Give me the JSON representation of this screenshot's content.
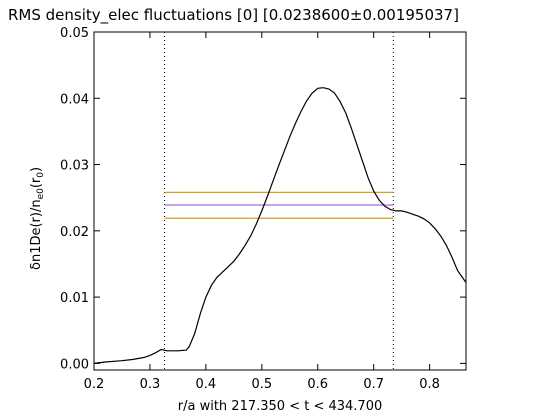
{
  "chart_data": {
    "type": "line",
    "title": "RMS density_elec fluctuations  [0] [0.0238600±0.00195037]",
    "xlabel": "r/a with 217.350 < t < 434.700",
    "ylabel_main": "δn1De(r)/n",
    "ylabel_sub1": "e0",
    "ylabel_mid": "(r",
    "ylabel_sub2": "0",
    "ylabel_end": ")",
    "xlim": [
      0.2,
      0.865
    ],
    "ylim": [
      -0.001,
      0.05
    ],
    "xticks": [
      0.2,
      0.3,
      0.4,
      0.5,
      0.6,
      0.7,
      0.8
    ],
    "xtick_labels": [
      "0.2",
      "0.3",
      "0.4",
      "0.5",
      "0.6",
      "0.7",
      "0.8"
    ],
    "yticks": [
      0.0,
      0.01,
      0.02,
      0.03,
      0.04,
      0.05
    ],
    "ytick_labels": [
      "0.00",
      "0.01",
      "0.02",
      "0.03",
      "0.04",
      "0.05"
    ],
    "grid": false,
    "series": [
      {
        "color": "#000000",
        "x": [
          0.2,
          0.22,
          0.25,
          0.27,
          0.29,
          0.3,
          0.31,
          0.32,
          0.325,
          0.33,
          0.35,
          0.365,
          0.37,
          0.38,
          0.39,
          0.4,
          0.41,
          0.42,
          0.43,
          0.44,
          0.45,
          0.46,
          0.47,
          0.48,
          0.49,
          0.5,
          0.51,
          0.52,
          0.53,
          0.54,
          0.55,
          0.56,
          0.57,
          0.58,
          0.59,
          0.6,
          0.61,
          0.62,
          0.63,
          0.64,
          0.65,
          0.66,
          0.67,
          0.68,
          0.69,
          0.7,
          0.71,
          0.72,
          0.73,
          0.74,
          0.75,
          0.76,
          0.77,
          0.78,
          0.79,
          0.8,
          0.81,
          0.82,
          0.83,
          0.84,
          0.85,
          0.865
        ],
        "y": [
          0.0,
          0.0002,
          0.0004,
          0.0006,
          0.0009,
          0.0012,
          0.0016,
          0.0021,
          0.002,
          0.0019,
          0.0019,
          0.002,
          0.0025,
          0.0045,
          0.0075,
          0.01,
          0.0118,
          0.013,
          0.0138,
          0.0146,
          0.0154,
          0.0165,
          0.0178,
          0.0192,
          0.021,
          0.023,
          0.0252,
          0.0275,
          0.0298,
          0.032,
          0.0342,
          0.0362,
          0.038,
          0.0396,
          0.0408,
          0.0415,
          0.0416,
          0.0414,
          0.0408,
          0.0395,
          0.0378,
          0.0355,
          0.033,
          0.0305,
          0.028,
          0.026,
          0.0246,
          0.0237,
          0.0232,
          0.023,
          0.023,
          0.0228,
          0.0225,
          0.0222,
          0.0218,
          0.0212,
          0.0203,
          0.0192,
          0.0178,
          0.016,
          0.014,
          0.0122
        ]
      }
    ],
    "hlines": [
      {
        "y": 0.0258,
        "x_from": 0.326,
        "x_to": 0.735,
        "color": "#d4a022"
      },
      {
        "y": 0.0239,
        "x_from": 0.326,
        "x_to": 0.735,
        "color": "#a070d8"
      },
      {
        "y": 0.0219,
        "x_from": 0.326,
        "x_to": 0.735,
        "color": "#d4a022"
      }
    ],
    "vlines": [
      {
        "x": 0.326,
        "style": "dotted",
        "color": "#000000"
      },
      {
        "x": 0.735,
        "style": "dotted",
        "color": "#000000"
      }
    ]
  }
}
